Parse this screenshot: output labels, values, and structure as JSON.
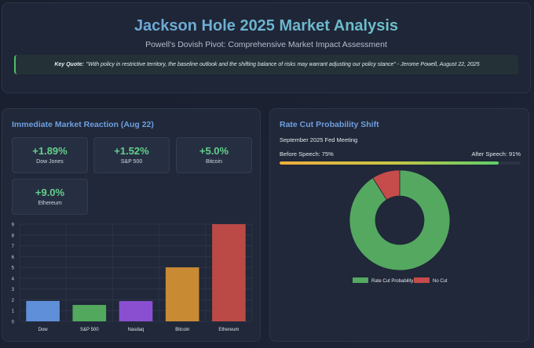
{
  "header": {
    "title": "Jackson Hole 2025 Market Analysis",
    "subtitle": "Powell's Dovish Pivot: Comprehensive Market Impact Assessment",
    "quote_label": "Key Quote:",
    "quote_text": "\"With policy in restrictive territory, the baseline outlook and the shifting balance of risks may warrant adjusting our policy stance\" - Jerome Powell, August 22, 2025"
  },
  "market_reaction": {
    "title": "Immediate Market Reaction (Aug 22)",
    "stats": [
      {
        "value": "+1.89%",
        "label": "Dow Jones"
      },
      {
        "value": "+1.52%",
        "label": "S&P 500"
      },
      {
        "value": "+5.0%",
        "label": "Bitcoin"
      },
      {
        "value": "+9.0%",
        "label": "Ethereum"
      }
    ]
  },
  "rate_cut": {
    "title": "Rate Cut Probability Shift",
    "meeting": "September 2025 Fed Meeting",
    "before_label": "Before Speech: 75%",
    "after_label": "After Speech: 91%",
    "progress_percent": 91
  },
  "chart_data": [
    {
      "type": "bar",
      "categories": [
        "Dow",
        "S&P 500",
        "Nasdaq",
        "Bitcoin",
        "Ethereum"
      ],
      "values": [
        1.89,
        1.52,
        1.88,
        5.0,
        9.0
      ],
      "colors": [
        "#5f8fd8",
        "#52a95e",
        "#8a4fd0",
        "#c98a34",
        "#bb4a47"
      ],
      "ylim": [
        0,
        9
      ],
      "yticks": [
        "0",
        "1",
        "2",
        "3",
        "4",
        "5",
        "6",
        "7",
        "8",
        "9"
      ],
      "grid": true,
      "title": "",
      "xlabel": "",
      "ylabel": ""
    },
    {
      "type": "pie",
      "labels": [
        "Rate Cut Probability",
        "No Cut"
      ],
      "values": [
        91,
        9
      ],
      "colors": [
        "#55a860",
        "#c54c4a"
      ],
      "legend": "bottom"
    }
  ]
}
